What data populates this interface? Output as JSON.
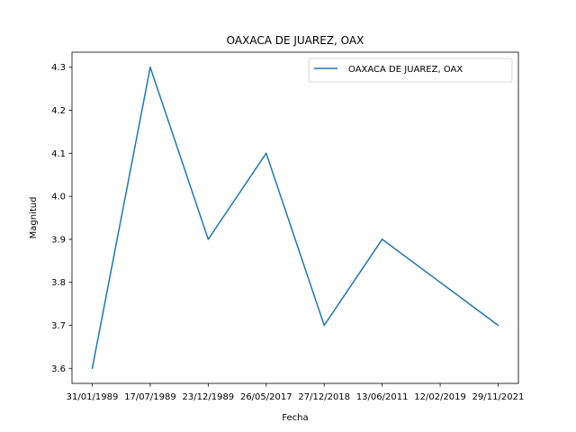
{
  "chart_data": {
    "type": "line",
    "title": "OAXACA DE JUAREZ, OAX",
    "xlabel": "Fecha",
    "ylabel": "Magnitud",
    "categories": [
      "31/01/1989",
      "17/07/1989",
      "23/12/1989",
      "26/05/2017",
      "27/12/2018",
      "13/06/2011",
      "12/02/2019",
      "29/11/2021"
    ],
    "series": [
      {
        "name": "OAXACA DE JUAREZ, OAX",
        "values": [
          3.6,
          4.3,
          3.9,
          4.1,
          3.7,
          3.9,
          3.8,
          3.7
        ],
        "color": "#1f77b4"
      }
    ],
    "yticks": [
      "3.6",
      "3.7",
      "3.8",
      "3.9",
      "4.0",
      "4.1",
      "4.2",
      "4.3"
    ],
    "ylim": [
      3.565,
      4.335
    ],
    "grid": false,
    "legend": "top-right"
  }
}
